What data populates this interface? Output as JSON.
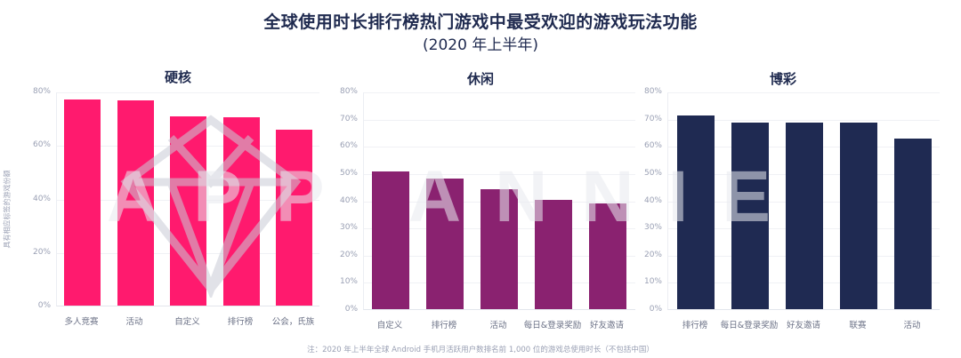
{
  "title": "全球使用时长排行榜热门游戏中最受欢迎的游戏玩法功能",
  "subtitle": "(2020 年上半年)",
  "ylabel": "具有相应标签的游戏份额",
  "footnote": "注：2020 年上半年全球 Android 手机月活跃用户数排名前 1,000 位的游戏总使用时长（不包括中国）",
  "watermark": "APP ANNIE",
  "colors": {
    "hardcore": "#ff1a6e",
    "casual": "#8a2270",
    "casino": "#1f2a52",
    "title": "#1f2a4f"
  },
  "chart_data": [
    {
      "type": "bar",
      "title": "硬核",
      "categories": [
        "多人竞赛",
        "活动",
        "自定义",
        "排行榜",
        "公会，氏族"
      ],
      "values": [
        77,
        76.7,
        70.7,
        70.3,
        65.7
      ],
      "ylabel": "具有相应标签的游戏份额",
      "ylim": [
        0,
        80
      ],
      "yticks": [
        "0%",
        "20%",
        "40%",
        "60%",
        "80%"
      ],
      "color": "#ff1a6e",
      "grid": true
    },
    {
      "type": "bar",
      "title": "休闲",
      "categories": [
        "自定义",
        "排行榜",
        "活动",
        "每日&登录奖励",
        "好友邀请"
      ],
      "values": [
        50.5,
        48,
        44,
        40.3,
        39
      ],
      "ylim": [
        0,
        80
      ],
      "yticks": [
        "0%",
        "10%",
        "20%",
        "30%",
        "40%",
        "50%",
        "60%",
        "70%",
        "80%"
      ],
      "color": "#8a2270",
      "grid": true
    },
    {
      "type": "bar",
      "title": "博彩",
      "categories": [
        "排行榜",
        "每日&登录奖励",
        "好友邀请",
        "联赛",
        "活动"
      ],
      "values": [
        71.3,
        68.5,
        68.5,
        68.5,
        62.8
      ],
      "ylim": [
        0,
        80
      ],
      "yticks": [
        "0%",
        "10%",
        "20%",
        "30%",
        "40%",
        "50%",
        "60%",
        "70%",
        "80%"
      ],
      "color": "#1f2a52",
      "grid": true
    }
  ]
}
